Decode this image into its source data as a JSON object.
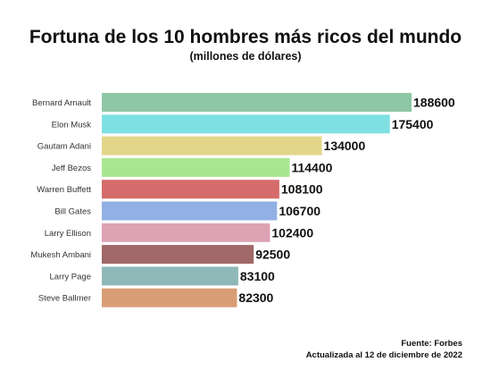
{
  "title": "Fortuna de los 10 hombres más ricos del mundo",
  "subtitle": "(millones de dólares)",
  "source": "Fuente: Forbes",
  "updated": "Actualizada al 12 de diciembre de 2022",
  "chart_data": {
    "type": "bar",
    "orientation": "horizontal",
    "title": "Fortuna de los 10 hombres más ricos del mundo",
    "subtitle": "(millones de dólares)",
    "categories": [
      "Bernard Arnault",
      "Elon Musk",
      "Gautam Adani",
      "Jeff Bezos",
      "Warren Buffett",
      "Bill Gates",
      "Larry Ellison",
      "Mukesh Ambani",
      "Larry Page",
      "Steve Ballmer"
    ],
    "values": [
      188600,
      175400,
      134000,
      114400,
      108100,
      106700,
      102400,
      92500,
      83100,
      82300
    ],
    "colors": [
      "#8ec7a6",
      "#7fe0e2",
      "#e3d68a",
      "#a9e690",
      "#d66b6b",
      "#93b0e4",
      "#dda2b3",
      "#a06868",
      "#8fb8b8",
      "#d99d75"
    ],
    "xlim": [
      0,
      188600
    ],
    "grid": false,
    "legend": "none",
    "data_labels": true
  }
}
